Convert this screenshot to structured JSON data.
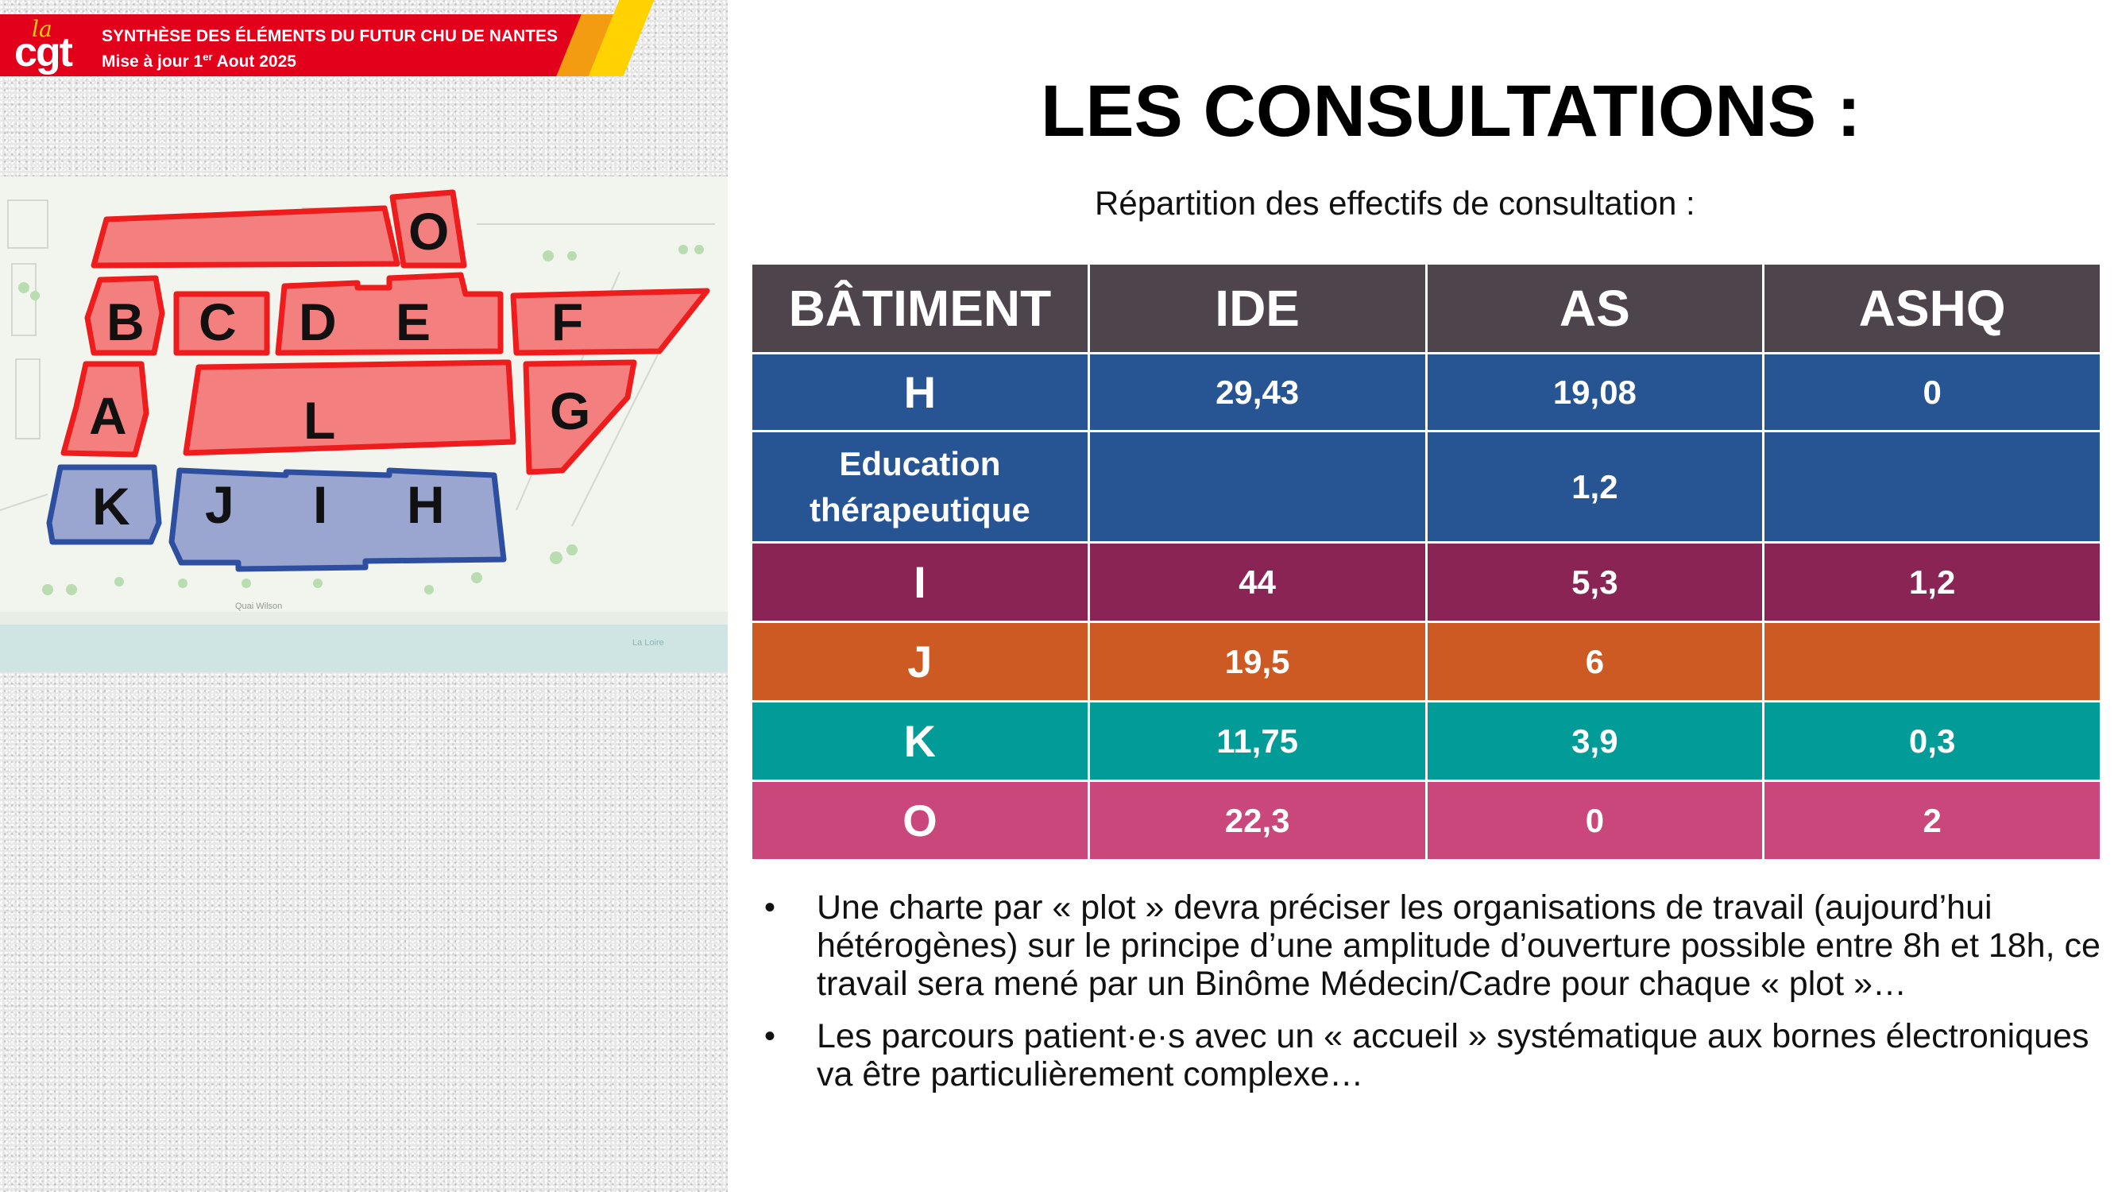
{
  "header": {
    "logo_small": "la",
    "logo_main": "cgt",
    "title": "SYNTHÈSE DES ÉLÉMENTS DU FUTUR CHU DE NANTES",
    "subtitle_prefix": "Mise à jour 1",
    "subtitle_sup": "er",
    "subtitle_suffix": " Aout 2025",
    "colors": {
      "red": "#e3001b",
      "orange": "#f39c12",
      "yellow": "#ffd200"
    }
  },
  "map": {
    "red_buildings": [
      "O",
      "B",
      "C",
      "D",
      "E",
      "F",
      "A",
      "L",
      "G"
    ],
    "blue_buildings": [
      "K",
      "J",
      "I",
      "H"
    ],
    "street_label": "Quai Wilson",
    "river_label": "La Loire",
    "colors": {
      "red_fill": "#f47f7f",
      "red_stroke": "#ee1c1c",
      "blue_fill": "#9aa6cf",
      "blue_stroke": "#2e4fa0"
    }
  },
  "title": "LES CONSULTATIONS :",
  "subtitle": "Répartition des effectifs de consultation :",
  "table": {
    "headers": [
      "BÂTIMENT",
      "IDE",
      "AS",
      "ASHQ"
    ],
    "rows": [
      {
        "batiment": "H",
        "ide": "29,43",
        "as": "19,08",
        "ashq": "0",
        "color": "#275492"
      },
      {
        "batiment": "Education thérapeutique",
        "ide": "",
        "as": "1,2",
        "ashq": "",
        "color": "#275492"
      },
      {
        "batiment": "I",
        "ide": "44",
        "as": "5,3",
        "ashq": "1,2",
        "color": "#8a2454"
      },
      {
        "batiment": "J",
        "ide": "19,5",
        "as": "6",
        "ashq": "",
        "color": "#cd5a23"
      },
      {
        "batiment": "K",
        "ide": "11,75",
        "as": "3,9",
        "ashq": "0,3",
        "color": "#029c98"
      },
      {
        "batiment": "O",
        "ide": "22,3",
        "as": "0",
        "ashq": "2",
        "color": "#c9477a"
      }
    ],
    "header_color": "#4e444c"
  },
  "bullets": [
    "Une charte par « plot » devra préciser les organisations de travail (aujourd’hui hétérogènes) sur le principe d’une amplitude d’ouverture possible entre 8h et 18h, ce travail sera mené par un Binôme Médecin/Cadre pour chaque « plot »…",
    "Les parcours patient·e·s avec un « accueil » systématique aux bornes électroniques va être particulièrement complexe…"
  ],
  "bullet_marker": "•"
}
